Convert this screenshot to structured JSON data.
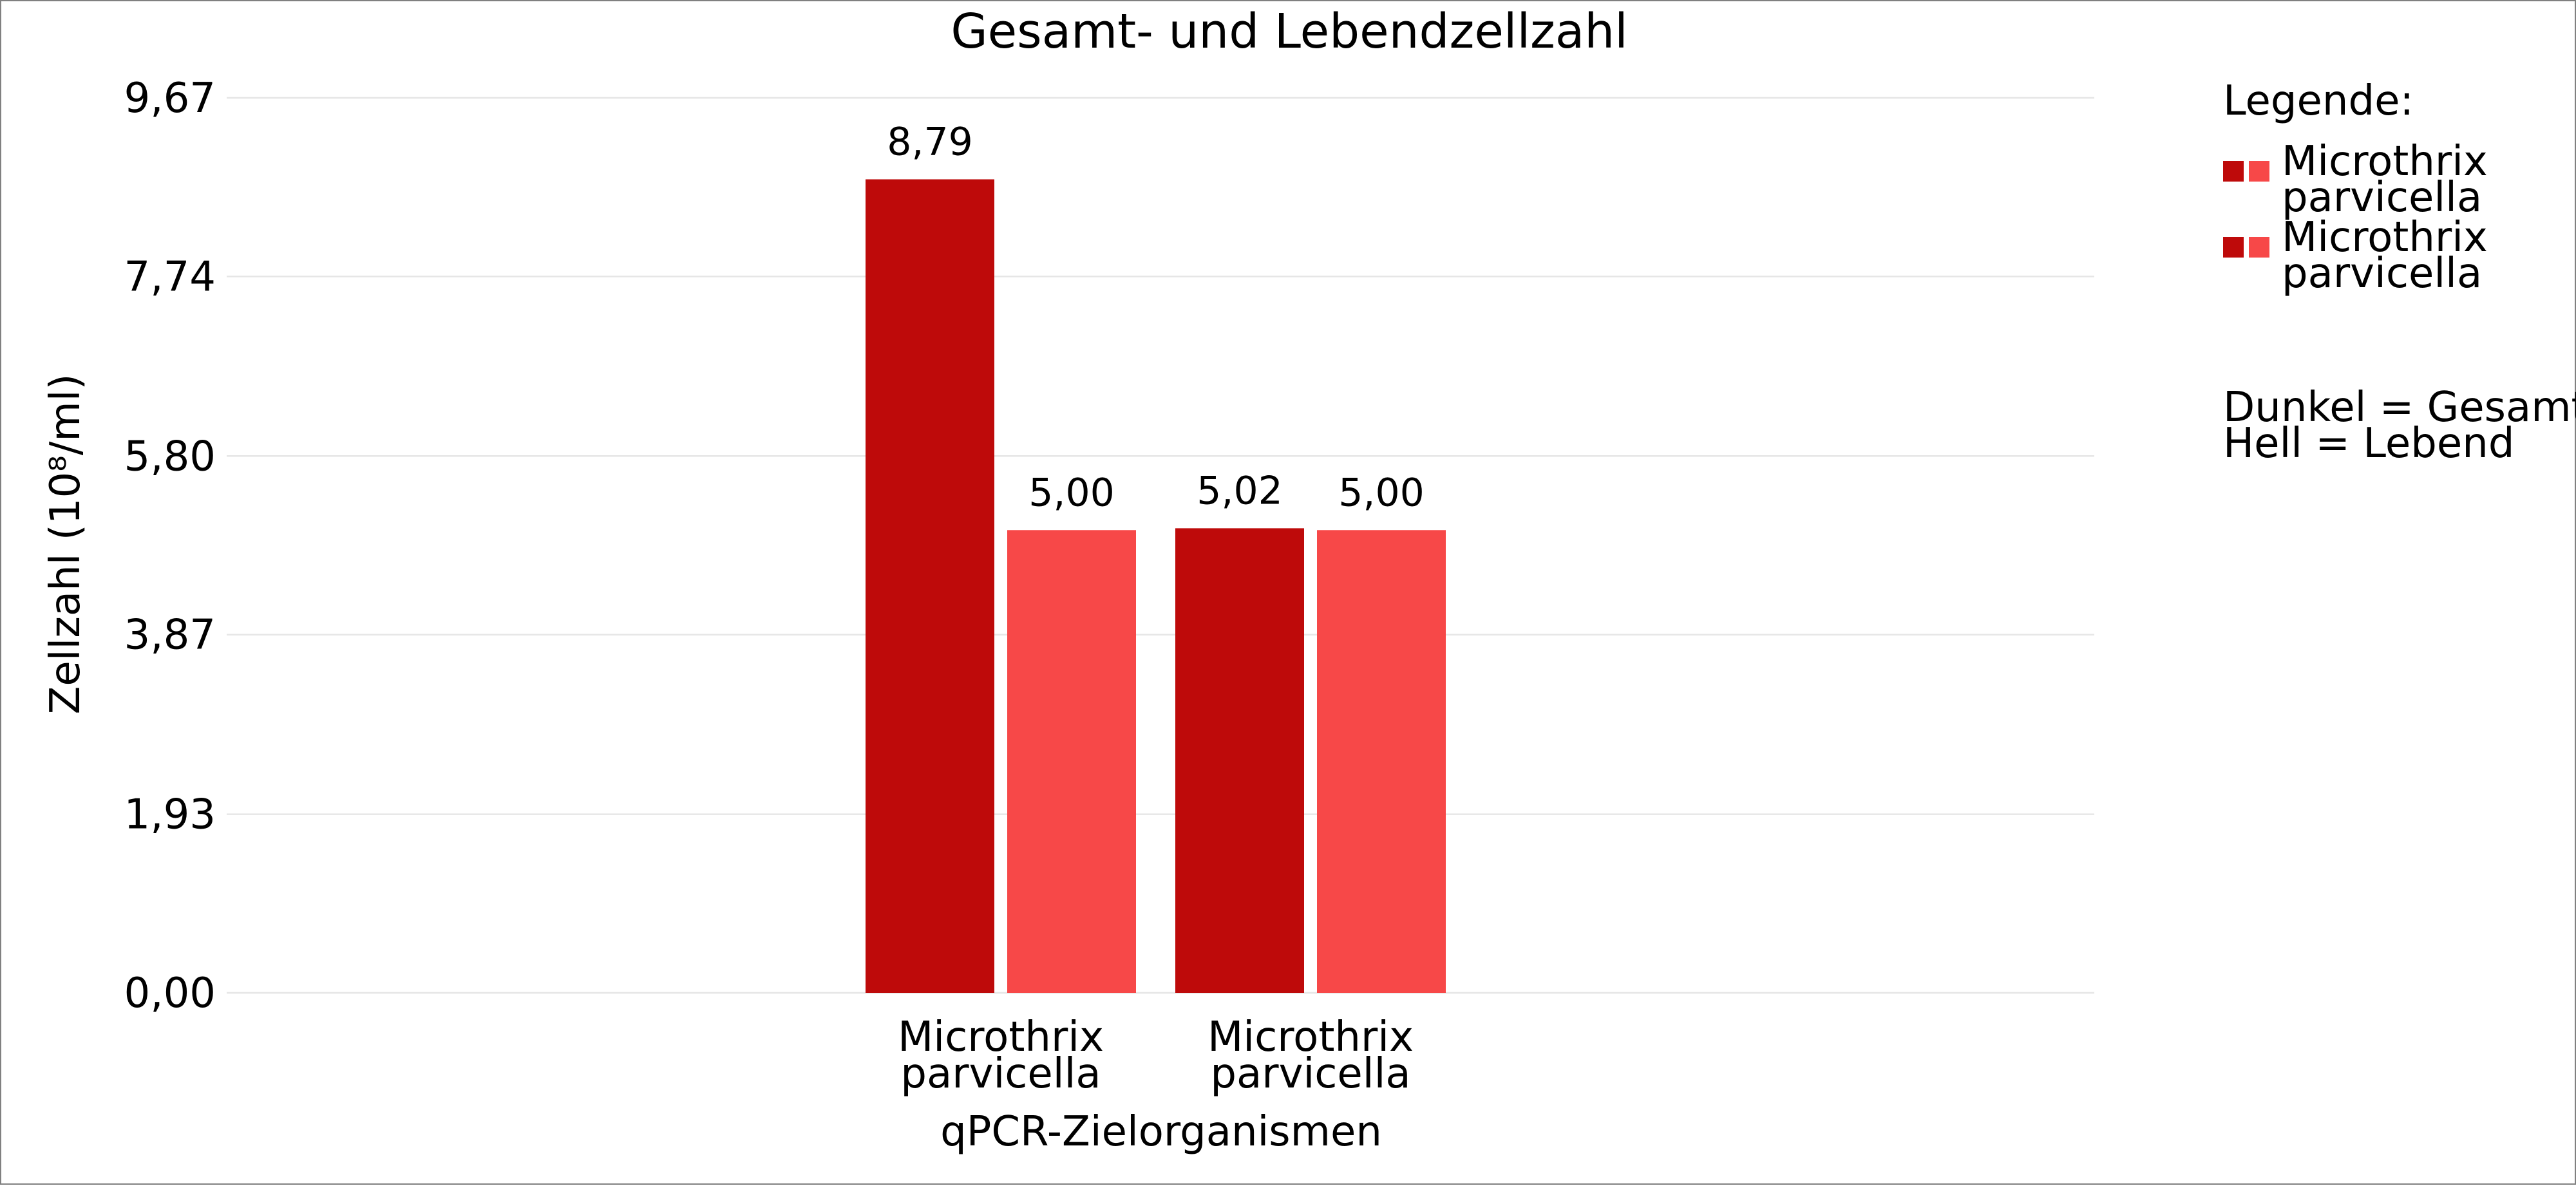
{
  "chart_data": {
    "type": "bar",
    "title": "Gesamt- und Lebendzellzahl",
    "xlabel": "qPCR-Zielorganismen",
    "ylabel": "Zellzahl (10⁸/ml)",
    "ylim": [
      0,
      9.67
    ],
    "y_ticks": [
      "0,00",
      "1,93",
      "3,87",
      "5,80",
      "7,74",
      "9,67"
    ],
    "y_tick_values": [
      0,
      1.93,
      3.87,
      5.8,
      7.74,
      9.67
    ],
    "grid": true,
    "categories": [
      [
        "Microthrix",
        "parvicella"
      ],
      [
        "Microthrix",
        "parvicella"
      ]
    ],
    "series": [
      {
        "name": "Gesamt",
        "color": "#be0a0a",
        "values": [
          8.79,
          5.02
        ],
        "labels": [
          "8,79",
          "5,02"
        ]
      },
      {
        "name": "Lebend",
        "color": "#f74848",
        "values": [
          5.0,
          5.0
        ],
        "labels": [
          "5,00",
          "5,00"
        ]
      }
    ],
    "legend": {
      "title": "Legende:",
      "placement": "right",
      "entries": [
        {
          "label_lines": [
            "Microthrix",
            "parvicella"
          ],
          "colors": [
            "#be0a0a",
            "#f74848"
          ]
        },
        {
          "label_lines": [
            "Microthrix",
            "parvicella"
          ],
          "colors": [
            "#be0a0a",
            "#f74848"
          ]
        }
      ],
      "notes": [
        "Dunkel = Gesamt",
        "Hell = Lebend"
      ]
    }
  }
}
